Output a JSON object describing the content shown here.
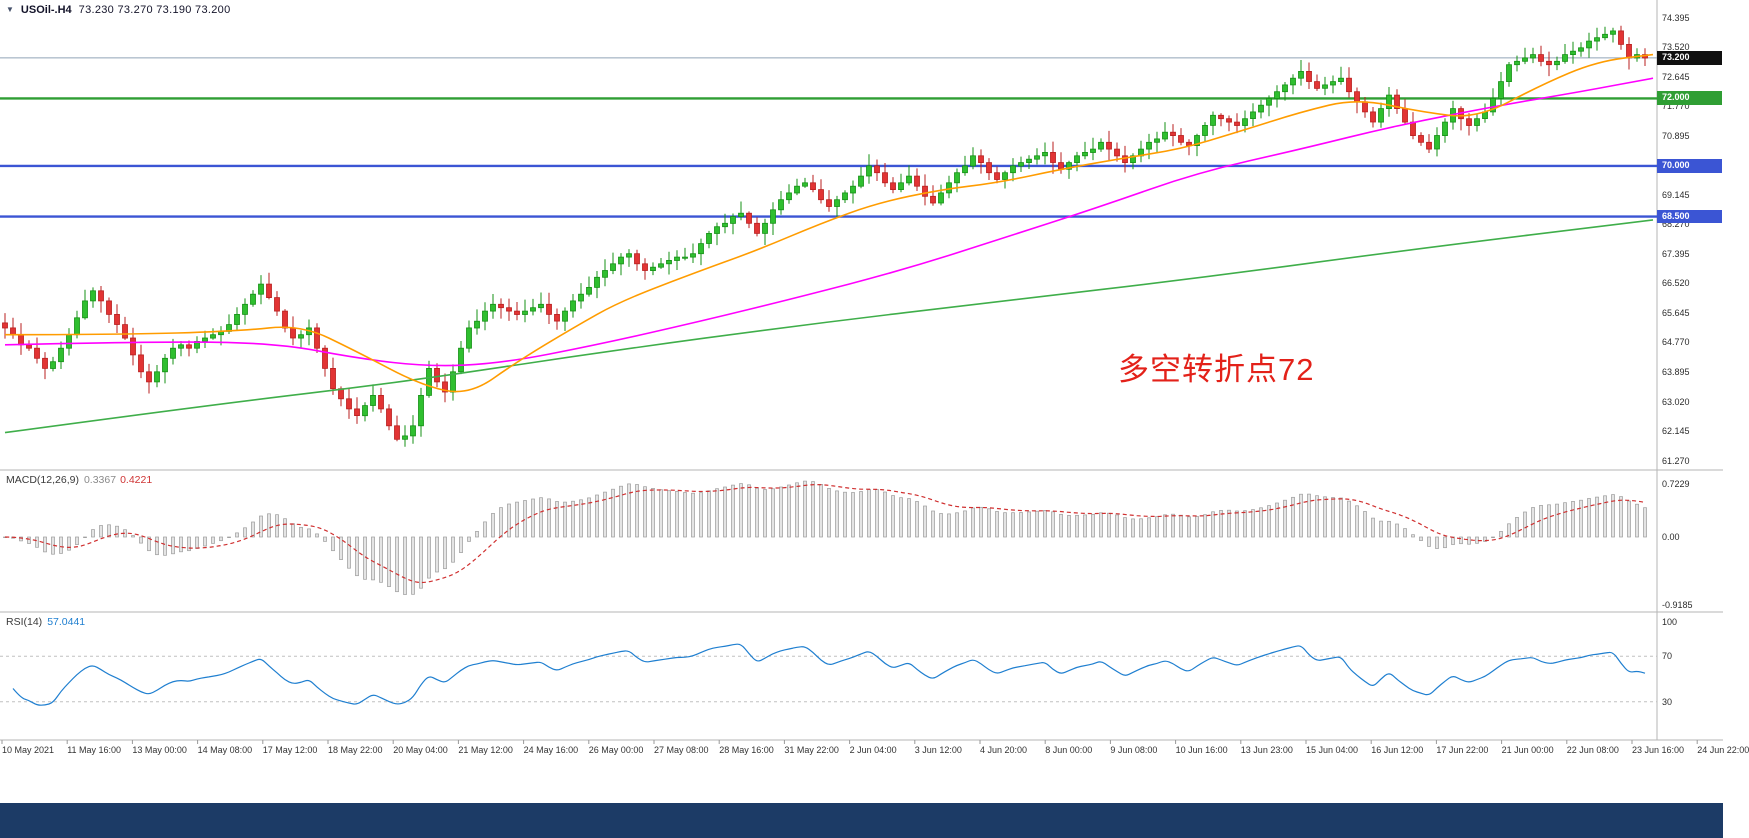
{
  "window": {
    "collapse_icon": "▼",
    "title_symbol": "USOil-.H4",
    "ohlc": "73.230 73.270 73.190 73.200"
  },
  "annotation": {
    "text": "多空转折点72",
    "color": "#e32119"
  },
  "colors": {
    "background": "#ffffff",
    "candle_up_fill": "#2fbf2f",
    "candle_up_stroke": "#149114",
    "candle_down_fill": "#e23434",
    "candle_down_stroke": "#b81f1f",
    "ma_fast": "#ff9c00",
    "ma_mid": "#ff00ff",
    "ma_slow": "#3fae4a",
    "level_green": "#2f9e34",
    "level_blue": "#3b55d4",
    "current_price_line": "#90a4b8",
    "macd_hist_fill": "#e4e4e4",
    "macd_hist_stroke": "#9b9b9b",
    "macd_signal": "#d03030",
    "rsi_line": "#1f7fd0",
    "rsi_level_line": "#c0c0c0",
    "separator": "#b5b5b5",
    "badge_current_bg": "#101010",
    "bottom_bar": "#1c3b66"
  },
  "price_axis": {
    "labels": [
      "74.395",
      "73.520",
      "72.645",
      "71.770",
      "70.895",
      "69.145",
      "68.270",
      "67.395",
      "66.520",
      "65.645",
      "64.770",
      "63.895",
      "63.020",
      "62.145",
      "61.270"
    ]
  },
  "levels": [
    {
      "name": "current-price",
      "value": 73.2,
      "color": "#90a4b8",
      "width": 1,
      "badge": "73.200",
      "badge_bg": "#101010"
    },
    {
      "name": "resistance-72",
      "value": 72.0,
      "color": "#2f9e34",
      "width": 2.4,
      "badge": "72.000",
      "badge_bg": "#2f9e34"
    },
    {
      "name": "support-70",
      "value": 70.0,
      "color": "#3b55d4",
      "width": 2.4,
      "badge": "70.000",
      "badge_bg": "#3b55d4"
    },
    {
      "name": "support-68-5",
      "value": 68.5,
      "color": "#3b55d4",
      "width": 2.4,
      "badge": "68.500",
      "badge_bg": "#3b55d4"
    }
  ],
  "indicators": {
    "macd": {
      "label": "MACD(12,26,9)",
      "value": "0.3367",
      "signal": "0.4221",
      "axis": [
        "0.7229",
        "0.00",
        "-0.9185"
      ]
    },
    "rsi": {
      "label": "RSI(14)",
      "value": "57.0441",
      "axis": [
        "100",
        "70",
        "30"
      ],
      "levels": [
        70,
        30
      ]
    }
  },
  "time_axis": [
    "10 May 2021",
    "11 May 16:00",
    "13 May 00:00",
    "14 May 08:00",
    "17 May 12:00",
    "18 May 22:00",
    "20 May 04:00",
    "21 May 12:00",
    "24 May 16:00",
    "26 May 00:00",
    "27 May 08:00",
    "28 May 16:00",
    "31 May 22:00",
    "2 Jun 04:00",
    "3 Jun 12:00",
    "4 Jun 20:00",
    "8 Jun 00:00",
    "9 Jun 08:00",
    "10 Jun 16:00",
    "13 Jun 23:00",
    "15 Jun 04:00",
    "16 Jun 12:00",
    "17 Jun 22:00",
    "21 Jun 00:00",
    "22 Jun 08:00",
    "23 Jun 16:00",
    "24 Jun 22:00"
  ],
  "chart_data": {
    "type": "candlestick",
    "symbol": "USOil",
    "timeframe": "H4",
    "title": "USOil-.H4",
    "last_ohlc": {
      "open": 73.23,
      "high": 73.27,
      "low": 73.19,
      "close": 73.2
    },
    "price_axis_range": [
      61.0,
      74.62
    ],
    "first_open": 65.35,
    "closes": [
      65.2,
      65.0,
      64.7,
      64.6,
      64.3,
      64.0,
      64.2,
      64.6,
      65.0,
      65.5,
      66.0,
      66.3,
      66.0,
      65.6,
      65.3,
      64.9,
      64.4,
      63.9,
      63.6,
      63.9,
      64.3,
      64.6,
      64.7,
      64.6,
      64.8,
      64.9,
      65.0,
      65.1,
      65.3,
      65.6,
      65.9,
      66.2,
      66.5,
      66.1,
      65.7,
      65.2,
      64.9,
      65.0,
      65.2,
      64.6,
      64.0,
      63.4,
      63.1,
      62.8,
      62.6,
      62.9,
      63.2,
      62.8,
      62.3,
      61.9,
      62.0,
      62.3,
      63.2,
      64.0,
      63.6,
      63.3,
      63.9,
      64.6,
      65.2,
      65.4,
      65.7,
      65.9,
      65.8,
      65.7,
      65.6,
      65.7,
      65.8,
      65.9,
      65.6,
      65.4,
      65.7,
      66.0,
      66.2,
      66.4,
      66.7,
      66.9,
      67.1,
      67.3,
      67.4,
      67.1,
      66.9,
      67.0,
      67.1,
      67.2,
      67.3,
      67.3,
      67.4,
      67.7,
      68.0,
      68.2,
      68.3,
      68.5,
      68.6,
      68.3,
      68.0,
      68.3,
      68.7,
      69.0,
      69.2,
      69.4,
      69.5,
      69.3,
      69.0,
      68.8,
      69.0,
      69.2,
      69.4,
      69.7,
      70.0,
      69.8,
      69.5,
      69.3,
      69.5,
      69.7,
      69.4,
      69.1,
      68.9,
      69.2,
      69.5,
      69.8,
      70.0,
      70.3,
      70.1,
      69.8,
      69.6,
      69.8,
      70.0,
      70.1,
      70.2,
      70.3,
      70.4,
      70.1,
      69.9,
      70.1,
      70.3,
      70.4,
      70.5,
      70.7,
      70.5,
      70.3,
      70.1,
      70.3,
      70.5,
      70.7,
      70.8,
      71.0,
      70.9,
      70.7,
      70.6,
      70.9,
      71.2,
      71.5,
      71.4,
      71.3,
      71.2,
      71.4,
      71.6,
      71.8,
      72.0,
      72.2,
      72.4,
      72.6,
      72.8,
      72.5,
      72.3,
      72.4,
      72.5,
      72.6,
      72.2,
      71.9,
      71.6,
      71.3,
      71.7,
      72.1,
      71.7,
      71.3,
      70.9,
      70.7,
      70.5,
      70.9,
      71.3,
      71.7,
      71.4,
      71.2,
      71.4,
      71.6,
      72.0,
      72.5,
      73.0,
      73.1,
      73.2,
      73.3,
      73.1,
      73.0,
      73.1,
      73.3,
      73.4,
      73.5,
      73.7,
      73.8,
      73.9,
      74.0,
      73.6,
      73.2,
      73.3,
      73.2
    ],
    "ma_fast": {
      "name": "fast-ma-orange",
      "color": "#ff9c00",
      "points": [
        [
          0,
          65.0
        ],
        [
          14,
          65.0
        ],
        [
          29,
          65.1
        ],
        [
          37,
          65.3
        ],
        [
          44,
          64.5
        ],
        [
          52,
          63.5
        ],
        [
          58,
          63.2
        ],
        [
          64,
          64.2
        ],
        [
          71,
          65.2
        ],
        [
          77,
          66.0
        ],
        [
          87,
          66.9
        ],
        [
          94,
          67.5
        ],
        [
          102,
          68.3
        ],
        [
          109,
          68.9
        ],
        [
          117,
          69.3
        ],
        [
          124,
          69.5
        ],
        [
          132,
          69.9
        ],
        [
          139,
          70.2
        ],
        [
          147,
          70.5
        ],
        [
          154,
          71.0
        ],
        [
          162,
          71.6
        ],
        [
          169,
          72.0
        ],
        [
          177,
          71.6
        ],
        [
          184,
          71.4
        ],
        [
          192,
          72.4
        ],
        [
          199,
          73.1
        ],
        [
          206,
          73.3
        ]
      ]
    },
    "ma_mid": {
      "name": "mid-ma-magenta",
      "color": "#ff00ff",
      "points": [
        [
          0,
          64.7
        ],
        [
          19,
          64.8
        ],
        [
          34,
          64.75
        ],
        [
          44,
          64.3
        ],
        [
          53,
          64.05
        ],
        [
          62,
          64.15
        ],
        [
          74,
          64.7
        ],
        [
          87,
          65.4
        ],
        [
          99,
          66.1
        ],
        [
          112,
          66.9
        ],
        [
          124,
          67.8
        ],
        [
          137,
          68.8
        ],
        [
          149,
          69.8
        ],
        [
          162,
          70.5
        ],
        [
          174,
          71.2
        ],
        [
          187,
          71.8
        ],
        [
          197,
          72.2
        ],
        [
          206,
          72.6
        ]
      ]
    },
    "ma_slow": {
      "name": "slow-ma-green",
      "color": "#3fae4a",
      "points": [
        [
          0,
          62.1
        ],
        [
          25,
          62.9
        ],
        [
          50,
          63.6
        ],
        [
          75,
          64.5
        ],
        [
          100,
          65.3
        ],
        [
          125,
          66.0
        ],
        [
          150,
          66.7
        ],
        [
          175,
          67.5
        ],
        [
          206,
          68.4
        ]
      ]
    },
    "indicators": {
      "macd": {
        "params": [
          12,
          26,
          9
        ],
        "value": 0.3367,
        "signal": 0.4221,
        "axis_range": [
          -0.9185,
          0.7229
        ]
      },
      "rsi": {
        "params": [
          14
        ],
        "value": 57.0441,
        "axis_range": [
          0,
          100
        ],
        "levels": [
          70,
          30
        ]
      }
    }
  }
}
